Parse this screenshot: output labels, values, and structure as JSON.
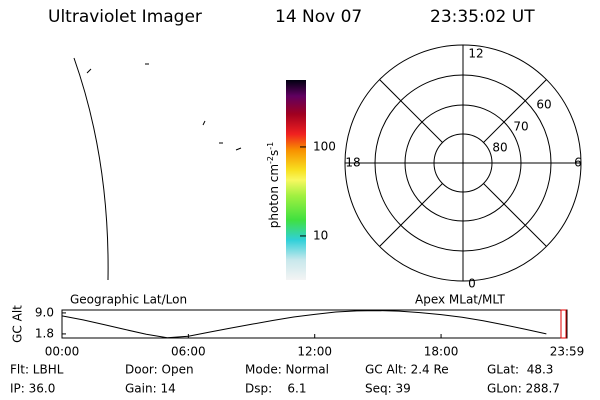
{
  "header": {
    "title": "Ultraviolet Imager",
    "date": "14 Nov 07",
    "time": "23:35:02 UT"
  },
  "colorbar": {
    "label": [
      "photon cm",
      "-2",
      "s",
      "-1"
    ],
    "range": [
      3.2,
      565
    ],
    "ticks": [
      10,
      100
    ],
    "log": true
  },
  "polar": {
    "mlt_labels": [
      "12",
      "6",
      "18",
      "0"
    ],
    "lat_labels": [
      "60",
      "70",
      "80"
    ]
  },
  "chart_data": {
    "type": "line",
    "ylabel": "GC Alt",
    "left_label": "Geographic Lat/Lon",
    "right_label": "Apex MLat/MLT",
    "x": [
      0,
      1,
      2,
      3,
      4,
      5,
      6,
      7,
      8,
      9,
      10,
      11,
      12,
      13,
      14,
      15,
      16,
      17,
      18,
      19,
      20,
      21,
      22,
      23
    ],
    "series": [
      {
        "name": "GC Alt",
        "color": "#000000",
        "values": [
          8.0,
          6.6,
          5.0,
          3.3,
          1.7,
          0.5,
          1.0,
          2.4,
          3.8,
          5.1,
          6.4,
          7.6,
          8.5,
          9.3,
          9.7,
          9.8,
          9.6,
          9.1,
          8.4,
          7.5,
          6.3,
          4.9,
          3.4,
          1.8
        ]
      }
    ],
    "xlim": [
      0,
      23.98
    ],
    "xticks": [
      {
        "value": 0,
        "label": "00:00"
      },
      {
        "value": 6,
        "label": "06:00"
      },
      {
        "value": 12,
        "label": "12:00"
      },
      {
        "value": 18,
        "label": "18:00"
      },
      {
        "value": 23.98,
        "label": "23:59"
      }
    ],
    "ylim": [
      0.4,
      10.0
    ],
    "yticks": [
      1.8,
      {
        "value": 9.0,
        "label": "9.0"
      }
    ]
  },
  "info": {
    "rows": [
      [
        "Flt: LBHL",
        "Door: Open",
        "Mode: Normal",
        "GC Alt: 2.4 Re",
        "GLat:  48.3"
      ],
      [
        "IP: 36.0",
        "Gain: 14",
        "Dsp:    6.1",
        "Seq: 39",
        "GLon: 288.7"
      ]
    ]
  }
}
